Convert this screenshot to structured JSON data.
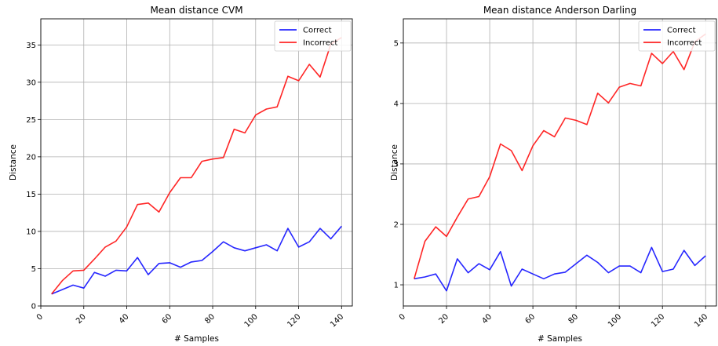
{
  "chart_data": [
    {
      "type": "line",
      "title": "Mean distance CVM",
      "xlabel": "# Samples",
      "ylabel": "Distance",
      "xlim": [
        0,
        145
      ],
      "ylim": [
        0,
        38.5
      ],
      "grid": true,
      "legend_position": "top-right",
      "x_ticks": [
        "0",
        "20",
        "40",
        "60",
        "80",
        "100",
        "120",
        "140"
      ],
      "y_ticks": [
        "0",
        "5",
        "10",
        "15",
        "20",
        "25",
        "30",
        "35"
      ],
      "x": [
        5,
        10,
        15,
        20,
        25,
        30,
        35,
        40,
        45,
        50,
        55,
        60,
        65,
        70,
        75,
        80,
        85,
        90,
        95,
        100,
        105,
        110,
        115,
        120,
        125,
        130,
        135,
        140
      ],
      "series": [
        {
          "name": "Correct",
          "color": "#0000ff",
          "values": [
            1.6,
            2.2,
            2.8,
            2.4,
            4.5,
            4.0,
            4.8,
            4.7,
            6.5,
            4.2,
            5.7,
            5.8,
            5.2,
            5.9,
            6.1,
            7.3,
            8.6,
            7.8,
            7.4,
            7.8,
            8.2,
            7.4,
            10.4,
            7.9,
            8.6,
            10.4,
            9.0,
            10.7
          ]
        },
        {
          "name": "Incorrect",
          "color": "#ff0000",
          "values": [
            1.6,
            3.4,
            4.7,
            4.8,
            6.3,
            7.9,
            8.7,
            10.6,
            13.6,
            13.8,
            12.6,
            15.2,
            17.2,
            17.2,
            19.4,
            19.7,
            19.9,
            23.7,
            23.2,
            25.6,
            26.4,
            26.7,
            30.8,
            30.2,
            32.4,
            30.7,
            35.1,
            36.0
          ]
        }
      ]
    },
    {
      "type": "line",
      "title": "Mean distance Anderson Darling",
      "xlabel": "# Samples",
      "ylabel": "Distance",
      "xlim": [
        0,
        145
      ],
      "ylim": [
        0.65,
        5.4
      ],
      "grid": true,
      "legend_position": "top-right",
      "x_ticks": [
        "0",
        "20",
        "40",
        "60",
        "80",
        "100",
        "120",
        "140"
      ],
      "y_ticks": [
        "1",
        "2",
        "3",
        "4",
        "5"
      ],
      "x": [
        5,
        10,
        15,
        20,
        25,
        30,
        35,
        40,
        45,
        50,
        55,
        60,
        65,
        70,
        75,
        80,
        85,
        90,
        95,
        100,
        105,
        110,
        115,
        120,
        125,
        130,
        135,
        140
      ],
      "series": [
        {
          "name": "Correct",
          "color": "#0000ff",
          "values": [
            1.1,
            1.13,
            1.18,
            0.9,
            1.43,
            1.2,
            1.35,
            1.25,
            1.55,
            0.98,
            1.26,
            1.18,
            1.1,
            1.18,
            1.21,
            1.35,
            1.49,
            1.37,
            1.2,
            1.31,
            1.31,
            1.2,
            1.62,
            1.22,
            1.26,
            1.57,
            1.32,
            1.48
          ]
        },
        {
          "name": "Incorrect",
          "color": "#ff0000",
          "values": [
            1.1,
            1.72,
            1.96,
            1.8,
            2.12,
            2.42,
            2.46,
            2.79,
            3.33,
            3.22,
            2.89,
            3.3,
            3.55,
            3.45,
            3.76,
            3.72,
            3.65,
            4.17,
            4.01,
            4.27,
            4.33,
            4.29,
            4.83,
            4.66,
            4.86,
            4.56,
            5.02,
            5.15
          ]
        }
      ]
    }
  ]
}
